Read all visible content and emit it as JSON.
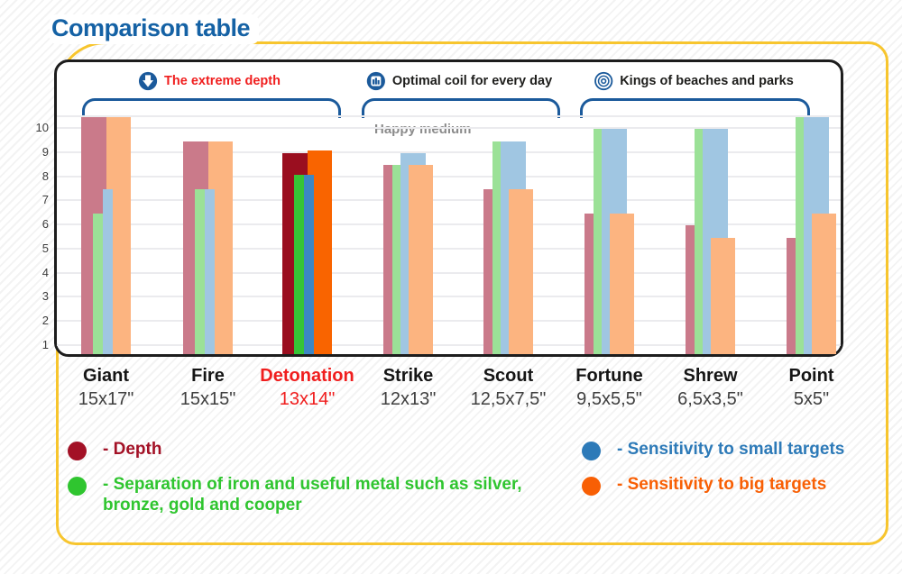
{
  "page_title": "Comparison table",
  "chart": {
    "type": "bar",
    "title": "Comparison table",
    "headers": [
      {
        "icon": "down-arrow-icon",
        "label": "The extreme depth",
        "color": "#f01e1e"
      },
      {
        "icon": "bar-chart-icon",
        "label": "Optimal coil for every day",
        "color": "#1d1d1b",
        "subtitle": "Happy medium"
      },
      {
        "icon": "target-icon",
        "label": "Kings of beaches and parks",
        "color": "#1d1d1b"
      }
    ],
    "ylabel": "",
    "xlabel": "",
    "yticks": [
      1,
      2,
      3,
      4,
      5,
      6,
      7,
      8,
      9,
      10
    ],
    "ymax": 10.5,
    "ybase": 0.65,
    "grid": true,
    "series": [
      "depth",
      "separation",
      "small_targets",
      "big_targets"
    ],
    "palette": {
      "muted": {
        "depth": "#ca7a8a",
        "separation": "#9be197",
        "small_targets": "#a0c6e2",
        "big_targets": "#fcb480"
      },
      "vivid": {
        "depth": "#9a0e1f",
        "separation": "#36c436",
        "small_targets": "#3c87c4",
        "big_targets": "#f96400"
      }
    },
    "groups": [
      {
        "name": "Giant",
        "size": "15x17\"",
        "highlight": false,
        "bar_style": "left",
        "values": {
          "depth": 10.5,
          "separation": 6.5,
          "small_targets": 7.5,
          "big_targets": 10.5
        }
      },
      {
        "name": "Fire",
        "size": "15x15\"",
        "highlight": false,
        "bar_style": "left",
        "values": {
          "depth": 9.5,
          "separation": 7.5,
          "small_targets": 7.5,
          "big_targets": 9.5
        }
      },
      {
        "name": "Detonation",
        "size": "13x14\"",
        "highlight": true,
        "bar_style": "left",
        "values": {
          "depth": 9.0,
          "separation": 8.1,
          "small_targets": 8.1,
          "big_targets": 9.1
        }
      },
      {
        "name": "Strike",
        "size": "12x13\"",
        "highlight": false,
        "bar_style": "right",
        "values": {
          "depth": 8.5,
          "separation": 8.5,
          "small_targets": 9.0,
          "big_targets": 8.5
        }
      },
      {
        "name": "Scout",
        "size": "12,5x7,5\"",
        "highlight": false,
        "bar_style": "right",
        "values": {
          "depth": 7.5,
          "separation": 9.5,
          "small_targets": 9.5,
          "big_targets": 7.5
        }
      },
      {
        "name": "Fortune",
        "size": "9,5x5,5\"",
        "highlight": false,
        "bar_style": "right",
        "values": {
          "depth": 6.5,
          "separation": 10.0,
          "small_targets": 10.0,
          "big_targets": 6.5
        }
      },
      {
        "name": "Shrew",
        "size": "6,5x3,5\"",
        "highlight": false,
        "bar_style": "right",
        "values": {
          "depth": 6.0,
          "separation": 10.0,
          "small_targets": 10.0,
          "big_targets": 5.5
        }
      },
      {
        "name": "Point",
        "size": "5x5\"",
        "highlight": false,
        "bar_style": "right",
        "values": {
          "depth": 5.5,
          "separation": 10.5,
          "small_targets": 10.5,
          "big_targets": 6.5
        }
      }
    ],
    "highlight_color": "#f01e1e"
  },
  "legend": {
    "left": [
      {
        "color": "#a31126",
        "label": "- Depth"
      },
      {
        "color": "#2fc52f",
        "label": "- Separation of iron and useful metal such as silver, bronze, gold and cooper"
      }
    ],
    "right": [
      {
        "color": "#2d7ab8",
        "label": "- Sensitivity to small targets"
      },
      {
        "color": "#f85f04",
        "label": "- Sensitivity to big targets"
      }
    ]
  }
}
